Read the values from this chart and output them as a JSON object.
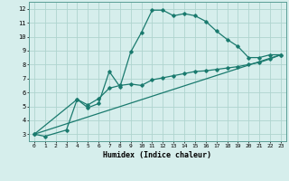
{
  "xlabel": "Humidex (Indice chaleur)",
  "background_color": "#d6eeec",
  "grid_color": "#afd4cf",
  "line_color": "#1a7a6e",
  "xlim": [
    -0.5,
    23.5
  ],
  "ylim": [
    2.5,
    12.5
  ],
  "xticks": [
    0,
    1,
    2,
    3,
    4,
    5,
    6,
    7,
    8,
    9,
    10,
    11,
    12,
    13,
    14,
    15,
    16,
    17,
    18,
    19,
    20,
    21,
    22,
    23
  ],
  "yticks": [
    3,
    4,
    5,
    6,
    7,
    8,
    9,
    10,
    11,
    12
  ],
  "series1": [
    [
      0,
      3.0
    ],
    [
      1,
      2.85
    ],
    [
      3,
      3.3
    ],
    [
      4,
      5.5
    ],
    [
      5,
      4.9
    ],
    [
      6,
      5.2
    ],
    [
      7,
      7.5
    ],
    [
      8,
      6.4
    ],
    [
      9,
      8.9
    ],
    [
      10,
      10.3
    ],
    [
      11,
      11.9
    ],
    [
      12,
      11.9
    ],
    [
      13,
      11.5
    ],
    [
      14,
      11.65
    ],
    [
      15,
      11.5
    ],
    [
      16,
      11.1
    ],
    [
      17,
      10.4
    ],
    [
      18,
      9.8
    ],
    [
      19,
      9.3
    ],
    [
      20,
      8.5
    ],
    [
      21,
      8.5
    ],
    [
      22,
      8.7
    ],
    [
      23,
      8.7
    ]
  ],
  "series2": [
    [
      0,
      3.0
    ],
    [
      4,
      5.5
    ],
    [
      5,
      5.1
    ],
    [
      6,
      5.55
    ],
    [
      7,
      6.3
    ],
    [
      8,
      6.5
    ],
    [
      9,
      6.6
    ],
    [
      10,
      6.5
    ],
    [
      11,
      6.9
    ],
    [
      12,
      7.05
    ],
    [
      13,
      7.2
    ],
    [
      14,
      7.35
    ],
    [
      15,
      7.5
    ],
    [
      16,
      7.55
    ],
    [
      17,
      7.65
    ],
    [
      18,
      7.75
    ],
    [
      19,
      7.85
    ],
    [
      20,
      8.0
    ],
    [
      21,
      8.15
    ],
    [
      22,
      8.4
    ],
    [
      23,
      8.7
    ]
  ],
  "series3": [
    [
      0,
      3.0
    ],
    [
      23,
      8.7
    ]
  ]
}
